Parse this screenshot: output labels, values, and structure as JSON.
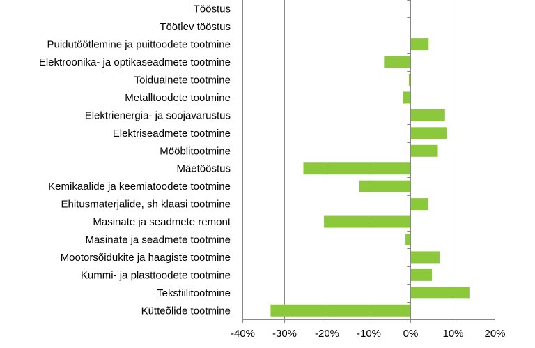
{
  "chart_data": {
    "type": "bar",
    "orientation": "horizontal",
    "categories": [
      "Tööstus",
      "Töötlev tööstus",
      "Puidutöötlemine ja puittoodete tootmine",
      "Elektroonika- ja optikaseadmete tootmine",
      "Toiduainete tootmine",
      "Metalltoodete tootmine",
      "Elektrienergia- ja soojavarustus",
      "Elektriseadmete tootmine",
      "Mööblitootmine",
      "Mäetööstus",
      "Kemikaalide ja keemiatoodete tootmine",
      "Ehitusmaterjalide, sh klaasi tootmine",
      "Masinate ja seadmete remont",
      "Masinate ja seadmete tootmine",
      "Mootorsõidukite ja haagiste tootmine",
      "Kummi- ja plasttoodete tootmine",
      "Tekstiilitootmine",
      "Kütteõlide tootmine"
    ],
    "values": [
      0.0,
      0.0,
      4.3,
      -6.3,
      -0.4,
      -1.8,
      8.2,
      8.6,
      6.5,
      -25.5,
      -12.2,
      4.2,
      -20.6,
      -1.2,
      6.9,
      5.1,
      14.0,
      -33.3
    ],
    "xlim": [
      -40,
      20
    ],
    "xticks": [
      -40,
      -30,
      -20,
      -10,
      0,
      10,
      20
    ],
    "tick_labels": [
      "-40%",
      "-30%",
      "-20%",
      "-10%",
      "0%",
      "10%",
      "20%"
    ],
    "gridlines": true,
    "legend": "none",
    "bar_color": "#8cc83c",
    "axis_color": "#888888",
    "grid_color": "#888888"
  }
}
